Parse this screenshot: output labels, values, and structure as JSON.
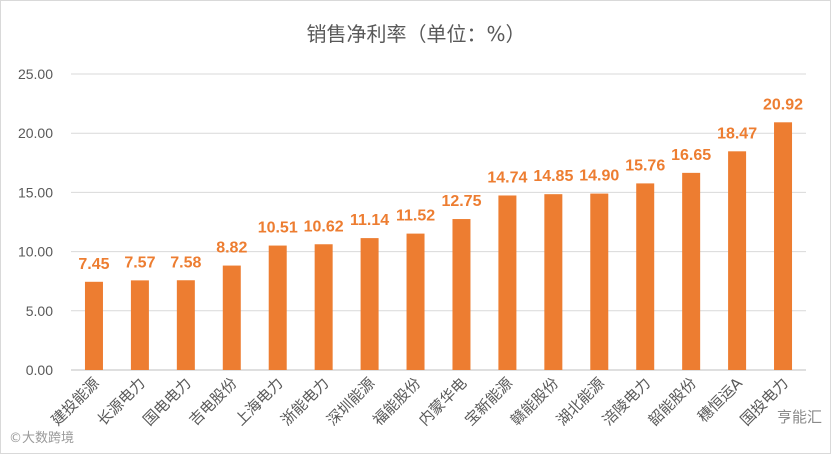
{
  "chart_data": {
    "type": "bar",
    "title": "销售净利率（单位：%）",
    "categories": [
      "建投能源",
      "长源电力",
      "国电电力",
      "吉电股份",
      "上海电力",
      "浙能电力",
      "深圳能源",
      "福能股份",
      "内蒙华电",
      "宝新能源",
      "赣能股份",
      "湖北能源",
      "涪陵电力",
      "韶能股份",
      "穗恒运A",
      "国投电力"
    ],
    "values": [
      7.45,
      7.57,
      7.58,
      8.82,
      10.51,
      10.62,
      11.14,
      11.52,
      12.75,
      14.74,
      14.85,
      14.9,
      15.76,
      16.65,
      18.47,
      20.92
    ],
    "value_labels": [
      "7.45",
      "7.57",
      "7.58",
      "8.82",
      "10.51",
      "10.62",
      "11.14",
      "11.52",
      "12.75",
      "14.74",
      "14.85",
      "14.90",
      "15.76",
      "16.65",
      "18.47",
      "20.92"
    ],
    "ylim": [
      0,
      25
    ],
    "yticks": [
      "0.00",
      "5.00",
      "10.00",
      "15.00",
      "20.00",
      "25.00"
    ],
    "grid": true,
    "bar_color": "#ED7D31",
    "label_color": "#ED7D31"
  },
  "watermarks": {
    "left": "©大数跨境",
    "right": "亨能汇"
  }
}
